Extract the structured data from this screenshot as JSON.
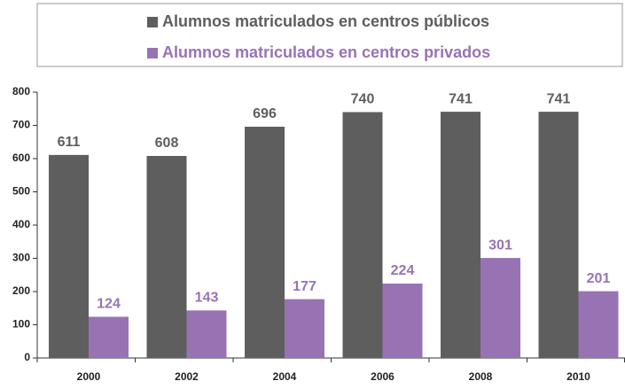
{
  "chart_data": {
    "type": "bar",
    "categories": [
      "2000",
      "2002",
      "2004",
      "2006",
      "2008",
      "2010"
    ],
    "series": [
      {
        "name": "Alumnos matriculados en centros públicos",
        "color": "#5e5e5f",
        "values": [
          611,
          608,
          696,
          740,
          741,
          741
        ]
      },
      {
        "name": "Alumnos matriculados en centros privados",
        "color": "#9873b4",
        "values": [
          124,
          143,
          177,
          224,
          301,
          201
        ]
      }
    ],
    "ylim": [
      0,
      800
    ],
    "yticks": [
      0,
      100,
      200,
      300,
      400,
      500,
      600,
      700,
      800
    ],
    "grid": false,
    "legend": "top"
  }
}
